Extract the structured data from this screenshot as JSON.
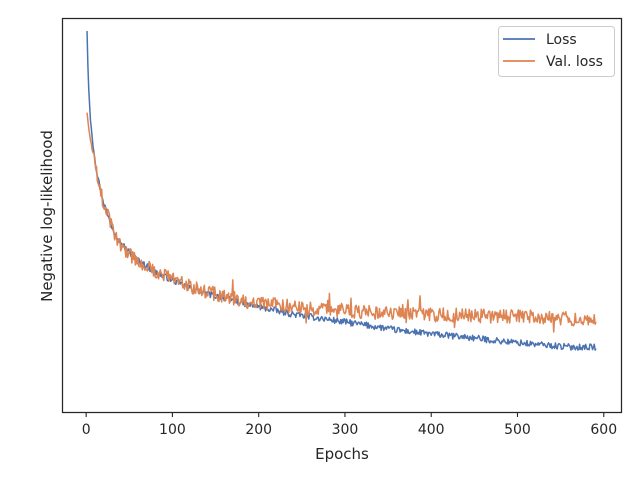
{
  "chart_data": {
    "type": "line",
    "title": "",
    "xlabel": "Epochs",
    "ylabel": "Negative log-likelihood",
    "xlim": [
      -28,
      620
    ],
    "ylim": [
      0,
      1
    ],
    "x_ticks": [
      0,
      100,
      200,
      300,
      400,
      500,
      600
    ],
    "y_ticks_shown": false,
    "grid": false,
    "legend_position": "top-right",
    "x_start": 1,
    "x_end": 591,
    "x_step": 1,
    "series": [
      {
        "name": "Loss",
        "color": "#4c72b0",
        "anchors": [
          [
            1,
            0.967
          ],
          [
            2,
            0.88
          ],
          [
            3,
            0.82
          ],
          [
            5,
            0.74
          ],
          [
            8,
            0.68
          ],
          [
            12,
            0.615
          ],
          [
            16,
            0.57
          ],
          [
            20,
            0.535
          ],
          [
            25,
            0.5
          ],
          [
            30,
            0.47
          ],
          [
            40,
            0.43
          ],
          [
            50,
            0.405
          ],
          [
            60,
            0.385
          ],
          [
            70,
            0.37
          ],
          [
            80,
            0.355
          ],
          [
            100,
            0.335
          ],
          [
            120,
            0.315
          ],
          [
            140,
            0.3
          ],
          [
            160,
            0.29
          ],
          [
            180,
            0.277
          ],
          [
            200,
            0.267
          ],
          [
            240,
            0.248
          ],
          [
            280,
            0.235
          ],
          [
            320,
            0.222
          ],
          [
            360,
            0.208
          ],
          [
            400,
            0.198
          ],
          [
            440,
            0.19
          ],
          [
            480,
            0.18
          ],
          [
            520,
            0.172
          ],
          [
            560,
            0.165
          ],
          [
            591,
            0.165
          ]
        ],
        "noise_amplitude": 0.008
      },
      {
        "name": "Val. loss",
        "color": "#dd8452",
        "anchors": [
          [
            1,
            0.76
          ],
          [
            2,
            0.74
          ],
          [
            3,
            0.72
          ],
          [
            5,
            0.69
          ],
          [
            8,
            0.66
          ],
          [
            12,
            0.61
          ],
          [
            16,
            0.565
          ],
          [
            20,
            0.53
          ],
          [
            25,
            0.5
          ],
          [
            30,
            0.465
          ],
          [
            40,
            0.425
          ],
          [
            50,
            0.4
          ],
          [
            60,
            0.383
          ],
          [
            70,
            0.37
          ],
          [
            80,
            0.357
          ],
          [
            100,
            0.34
          ],
          [
            120,
            0.32
          ],
          [
            140,
            0.305
          ],
          [
            160,
            0.295
          ],
          [
            180,
            0.285
          ],
          [
            200,
            0.276
          ],
          [
            240,
            0.267
          ],
          [
            280,
            0.26
          ],
          [
            320,
            0.255
          ],
          [
            360,
            0.25
          ],
          [
            400,
            0.247
          ],
          [
            440,
            0.245
          ],
          [
            480,
            0.243
          ],
          [
            520,
            0.243
          ],
          [
            560,
            0.237
          ],
          [
            591,
            0.235
          ]
        ],
        "noise_amplitude": 0.018
      }
    ]
  }
}
